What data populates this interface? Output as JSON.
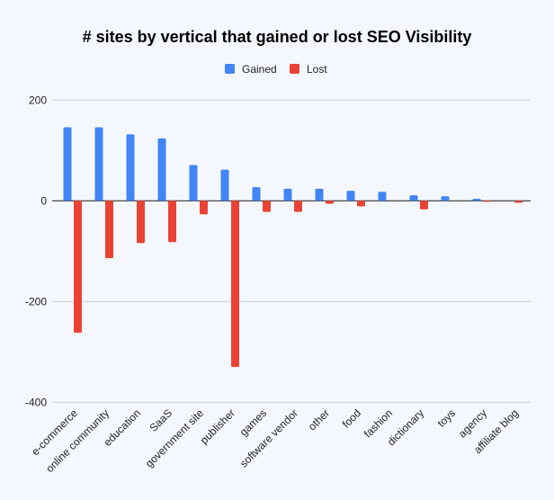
{
  "chart_data": {
    "type": "bar",
    "title": "# sites by vertical that gained or lost SEO Visibility",
    "xlabel": "",
    "ylabel": "",
    "ylim": [
      -400,
      200
    ],
    "yticks": [
      200,
      0,
      -200,
      -400
    ],
    "ytick_labels": [
      "200",
      "0",
      "-200",
      "-400"
    ],
    "grid": true,
    "legend": "top",
    "categories": [
      "e-commerce",
      "online community",
      "education",
      "SaaS",
      "government site",
      "publisher",
      "games",
      "software vendor",
      "other",
      "food",
      "fashion",
      "dictionary",
      "toys",
      "agency",
      "affiliate blog"
    ],
    "series": [
      {
        "name": "Gained",
        "color": "#4285f4",
        "values": [
          146,
          146,
          132,
          124,
          71,
          62,
          27,
          24,
          24,
          20,
          18,
          11,
          9,
          4,
          0
        ]
      },
      {
        "name": "Lost",
        "color": "#ea4335",
        "values": [
          -262,
          -114,
          -84,
          -82,
          -27,
          -330,
          -22,
          -22,
          -6,
          -11,
          0,
          -17,
          0,
          -2,
          -4
        ]
      }
    ]
  }
}
